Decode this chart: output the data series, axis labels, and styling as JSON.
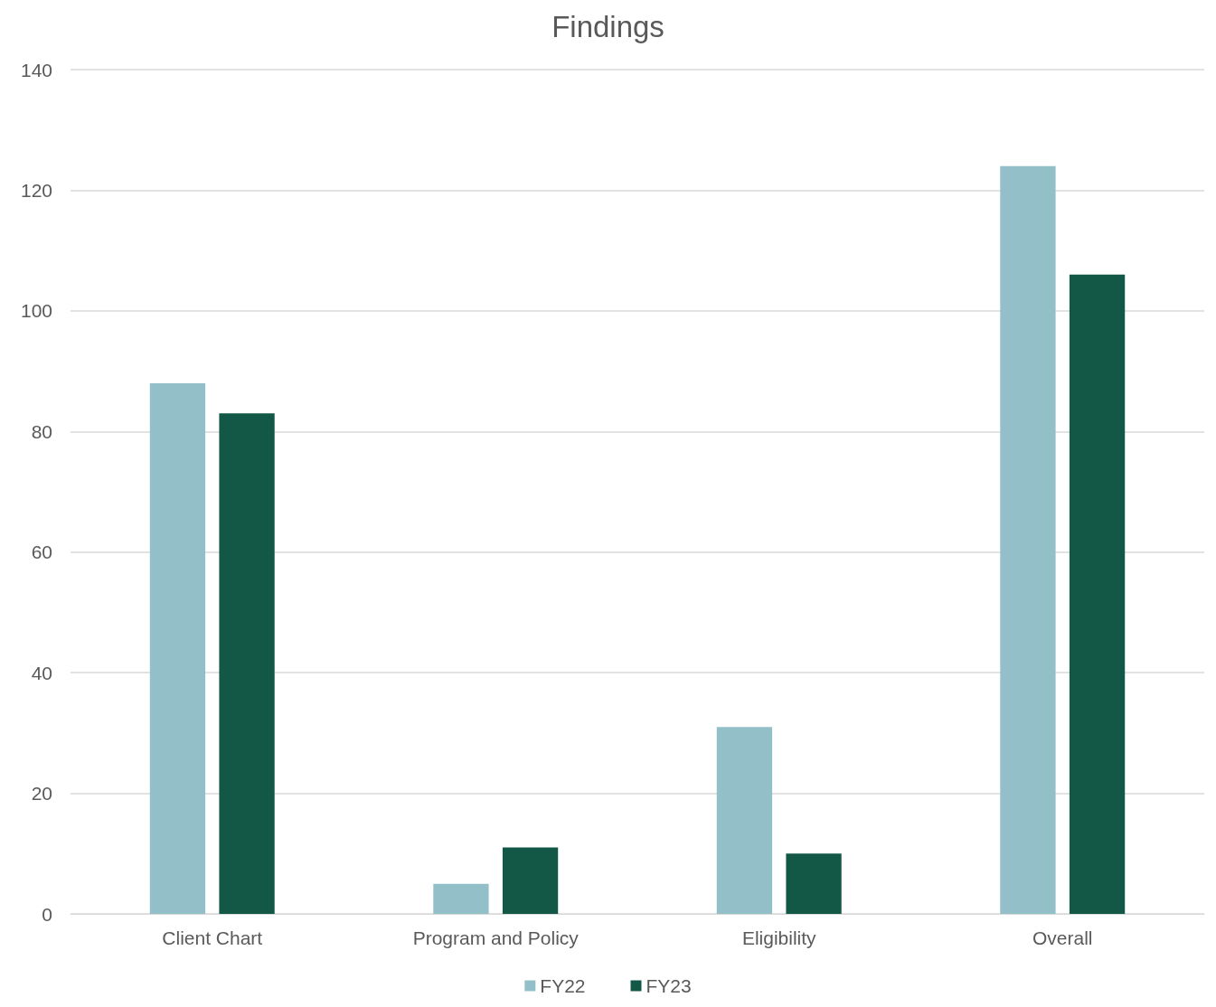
{
  "chart_data": {
    "type": "bar",
    "title": "Findings",
    "categories": [
      "Client Chart",
      "Program and Policy",
      "Eligibility",
      "Overall"
    ],
    "series": [
      {
        "name": "FY22",
        "color": "#93c0c8",
        "values": [
          88,
          5,
          31,
          124
        ]
      },
      {
        "name": "FY23",
        "color": "#135846",
        "values": [
          83,
          11,
          10,
          106
        ]
      }
    ],
    "ylim": [
      0,
      140
    ],
    "yticks": [
      0,
      20,
      40,
      60,
      80,
      100,
      120,
      140
    ],
    "grid": "y",
    "legend": "bottom"
  }
}
